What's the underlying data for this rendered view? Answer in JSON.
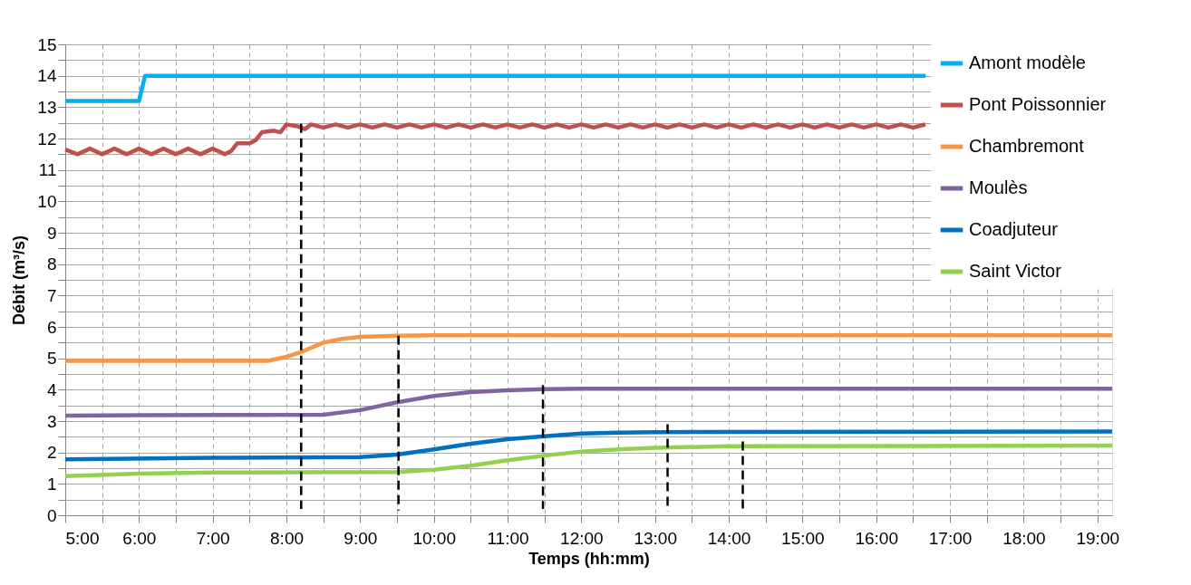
{
  "chart_data": {
    "type": "line",
    "xlabel": "Temps (hh:mm)",
    "ylabel": "Débit (m³/s)",
    "xlim": [
      5,
      19.2
    ],
    "ylim": [
      0,
      15
    ],
    "xticks": [
      {
        "value": 5,
        "label": "5:00"
      },
      {
        "value": 5.5,
        "label": null
      },
      {
        "value": 6,
        "label": "6:00"
      },
      {
        "value": 6.5,
        "label": null
      },
      {
        "value": 7,
        "label": "7:00"
      },
      {
        "value": 7.5,
        "label": null
      },
      {
        "value": 8,
        "label": "8:00"
      },
      {
        "value": 8.5,
        "label": null
      },
      {
        "value": 9,
        "label": "9:00"
      },
      {
        "value": 9.5,
        "label": null
      },
      {
        "value": 10,
        "label": "10:00"
      },
      {
        "value": 10.5,
        "label": null
      },
      {
        "value": 11,
        "label": "11:00"
      },
      {
        "value": 11.5,
        "label": null
      },
      {
        "value": 12,
        "label": "12:00"
      },
      {
        "value": 12.5,
        "label": null
      },
      {
        "value": 13,
        "label": "13:00"
      },
      {
        "value": 13.5,
        "label": null
      },
      {
        "value": 14,
        "label": "14:00"
      },
      {
        "value": 14.5,
        "label": null
      },
      {
        "value": 15,
        "label": "15:00"
      },
      {
        "value": 15.5,
        "label": null
      },
      {
        "value": 16,
        "label": "16:00"
      },
      {
        "value": 16.5,
        "label": null
      },
      {
        "value": 17,
        "label": "17:00"
      },
      {
        "value": 17.5,
        "label": null
      },
      {
        "value": 18,
        "label": "18:00"
      },
      {
        "value": 18.5,
        "label": null
      },
      {
        "value": 19,
        "label": "19:00"
      }
    ],
    "yticks": [
      0,
      {
        "value": 0.5,
        "label": null
      },
      1,
      {
        "value": 1.5,
        "label": null
      },
      2,
      {
        "value": 2.5,
        "label": null
      },
      3,
      {
        "value": 3.5,
        "label": null
      },
      4,
      {
        "value": 4.5,
        "label": null
      },
      5,
      {
        "value": 5.5,
        "label": null
      },
      6,
      {
        "value": 6.5,
        "label": null
      },
      7,
      {
        "value": 7.5,
        "label": null
      },
      8,
      {
        "value": 8.5,
        "label": null
      },
      9,
      {
        "value": 9.5,
        "label": null
      },
      10,
      {
        "value": 10.5,
        "label": null
      },
      11,
      {
        "value": 11.5,
        "label": null
      },
      12,
      {
        "value": 12.5,
        "label": null
      },
      13,
      {
        "value": 13.5,
        "label": null
      },
      14,
      {
        "value": 14.5,
        "label": null
      },
      15
    ],
    "grid": true,
    "legend": "top right",
    "series": [
      {
        "name": "Amont modèle",
        "color": "#00b0f0",
        "x": [
          5,
          6,
          6.083,
          16.67
        ],
        "values": [
          13.2,
          13.2,
          14.0,
          14.0
        ]
      },
      {
        "name": "Pont Poissonnier",
        "color": "#c0504d",
        "x": [
          5,
          5.167,
          5.333,
          5.5,
          5.667,
          5.833,
          6,
          6.167,
          6.333,
          6.5,
          6.667,
          6.833,
          7,
          7.167,
          7.25,
          7.333,
          7.5,
          7.583,
          7.667,
          7.833,
          7.917,
          8,
          8.167,
          8.25,
          8.333,
          8.5,
          8.667,
          8.833,
          9,
          9.167,
          9.333,
          9.5,
          9.667,
          9.833,
          10,
          10.167,
          10.333,
          10.5,
          10.667,
          10.833,
          11,
          11.167,
          11.333,
          11.5,
          11.667,
          11.833,
          12,
          12.167,
          12.333,
          12.5,
          12.667,
          12.833,
          13,
          13.167,
          13.333,
          13.5,
          13.667,
          13.833,
          14,
          14.167,
          14.333,
          14.5,
          14.667,
          14.833,
          15,
          15.167,
          15.333,
          15.5,
          15.667,
          15.833,
          16,
          16.167,
          16.333,
          16.5,
          16.667
        ],
        "values": [
          11.65,
          11.5,
          11.68,
          11.5,
          11.68,
          11.5,
          11.68,
          11.5,
          11.68,
          11.5,
          11.68,
          11.5,
          11.68,
          11.5,
          11.6,
          11.85,
          11.85,
          11.95,
          12.2,
          12.25,
          12.2,
          12.45,
          12.38,
          12.3,
          12.45,
          12.35,
          12.45,
          12.35,
          12.45,
          12.35,
          12.45,
          12.35,
          12.45,
          12.35,
          12.45,
          12.35,
          12.45,
          12.35,
          12.45,
          12.35,
          12.45,
          12.35,
          12.45,
          12.35,
          12.45,
          12.35,
          12.45,
          12.35,
          12.45,
          12.35,
          12.45,
          12.35,
          12.45,
          12.35,
          12.45,
          12.35,
          12.45,
          12.35,
          12.45,
          12.35,
          12.45,
          12.35,
          12.45,
          12.35,
          12.45,
          12.35,
          12.45,
          12.35,
          12.45,
          12.35,
          12.45,
          12.35,
          12.45,
          12.35,
          12.45
        ]
      },
      {
        "name": "Chambremont",
        "color": "#f79646",
        "x": [
          5,
          7.75,
          8,
          8.2,
          8.5,
          8.75,
          9,
          9.5,
          10,
          19.2
        ],
        "values": [
          4.92,
          4.92,
          5.05,
          5.2,
          5.5,
          5.62,
          5.68,
          5.72,
          5.73,
          5.73
        ]
      },
      {
        "name": "Moulès",
        "color": "#8064a2",
        "x": [
          5,
          6,
          8.5,
          9,
          9.5,
          10,
          10.5,
          11,
          11.5,
          12,
          19.2
        ],
        "values": [
          3.17,
          3.19,
          3.2,
          3.35,
          3.6,
          3.8,
          3.92,
          3.98,
          4.02,
          4.03,
          4.03
        ]
      },
      {
        "name": "Coadjuteur",
        "color": "#0070c0",
        "x": [
          5,
          7,
          9,
          9.5,
          10,
          10.5,
          11,
          11.5,
          12,
          12.5,
          13,
          19.2
        ],
        "values": [
          1.78,
          1.83,
          1.85,
          1.93,
          2.1,
          2.28,
          2.42,
          2.52,
          2.6,
          2.63,
          2.65,
          2.67
        ]
      },
      {
        "name": "Saint Victor",
        "color": "#92d050",
        "x": [
          5,
          6,
          7,
          9.5,
          10,
          10.5,
          11,
          11.5,
          12,
          12.5,
          13,
          14,
          19.2
        ],
        "values": [
          1.25,
          1.33,
          1.36,
          1.38,
          1.45,
          1.58,
          1.75,
          1.9,
          2.03,
          2.1,
          2.15,
          2.2,
          2.22
        ]
      },
      {
        "type": "line",
        "color": "#000000",
        "line_style": "dashed",
        "x": [
          8.2,
          8.2
        ],
        "values": [
          0.2,
          12.47
        ]
      },
      {
        "type": "line",
        "color": "#000000",
        "line_style": "dashed",
        "x": [
          9.52,
          9.52
        ],
        "values": [
          0.15,
          5.72
        ]
      },
      {
        "type": "line",
        "color": "#000000",
        "line_style": "dashed",
        "x": [
          11.48,
          11.48
        ],
        "values": [
          0.2,
          4.15
        ]
      },
      {
        "type": "line",
        "color": "#000000",
        "line_style": "dashed",
        "x": [
          13.17,
          13.17
        ],
        "values": [
          0.12,
          2.9
        ]
      },
      {
        "type": "line",
        "color": "#000000",
        "line_style": "dashed",
        "x": [
          14.19,
          14.19
        ],
        "values": [
          0.12,
          2.35
        ]
      }
    ]
  }
}
